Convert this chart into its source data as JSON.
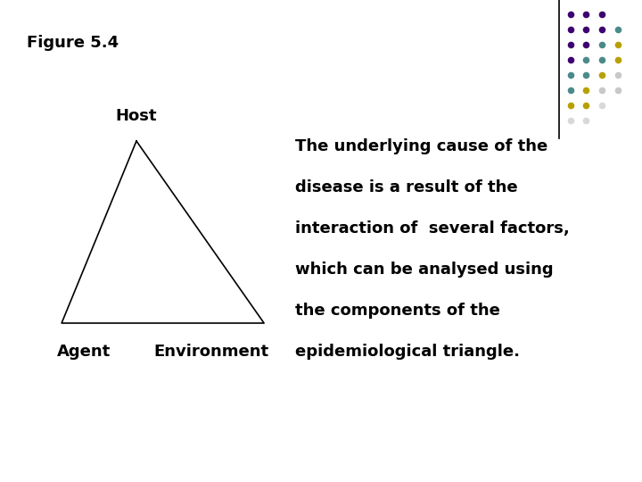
{
  "title": "Figure 5.4",
  "bg_color": "#ffffff",
  "host_label": "Host",
  "agent_label": "Agent",
  "environment_label": "Environment",
  "body_text_lines": [
    "The underlying cause of the",
    "disease is a result of the",
    "interaction of  several factors,",
    "which can be analysed using",
    "the components of the",
    "epidemiological triangle."
  ],
  "dot_grid": {
    "cols_per_row": [
      3,
      4,
      4,
      4,
      4,
      4,
      3,
      2
    ],
    "colors_per_row": [
      [
        "#3d0070",
        "#3d0070",
        "#3d0070"
      ],
      [
        "#3d0070",
        "#3d0070",
        "#3d0070",
        "#4a8a8a"
      ],
      [
        "#3d0070",
        "#3d0070",
        "#4a8a8a",
        "#b8a000"
      ],
      [
        "#3d0070",
        "#4a8a8a",
        "#4a8a8a",
        "#b8a000"
      ],
      [
        "#4a8a8a",
        "#4a8a8a",
        "#b8a000",
        "#c8c8c8"
      ],
      [
        "#4a8a8a",
        "#b8a000",
        "#c8c8c8",
        "#c8c8c8"
      ],
      [
        "#b8a000",
        "#b8a000",
        "#d8d8d8"
      ],
      [
        "#d8d8d8",
        "#d8d8d8"
      ]
    ]
  },
  "font_size_title": 13,
  "font_size_labels": 13,
  "font_size_body": 13
}
